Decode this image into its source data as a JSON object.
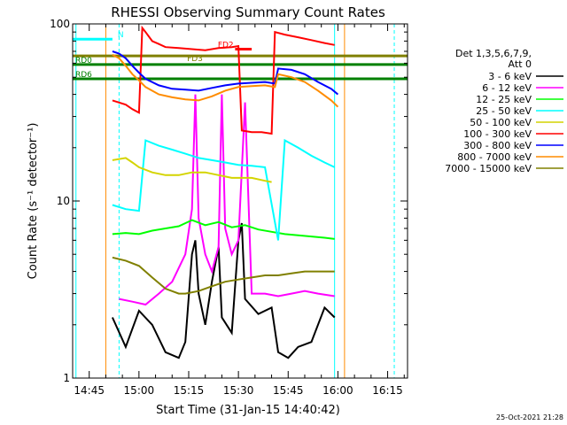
{
  "chart_data": {
    "type": "line",
    "title": "RHESSI Observing Summary Count Rates",
    "xlabel": "Start Time (31-Jan-15 14:40:42)",
    "ylabel": "Count Rate (s⁻¹ detector⁻¹)",
    "yscale": "log",
    "ylim": [
      1,
      100
    ],
    "yticks": [
      {
        "v": 1,
        "label": "1"
      },
      {
        "v": 10,
        "label": "10"
      },
      {
        "v": 100,
        "label": "100"
      }
    ],
    "xlim_min": [
      640,
      741
    ],
    "xticks": [
      {
        "v": 645,
        "label": "14:45"
      },
      {
        "v": 660,
        "label": "15:00"
      },
      {
        "v": 675,
        "label": "15:15"
      },
      {
        "v": 690,
        "label": "15:30"
      },
      {
        "v": 705,
        "label": "15:45"
      },
      {
        "v": 720,
        "label": "16:00"
      },
      {
        "v": 735,
        "label": "16:15"
      }
    ],
    "legend": {
      "placement": "right",
      "header": [
        "Det 1,3,5,6,7,9,",
        "Att 0"
      ],
      "entries": [
        {
          "label": "3 - 6 keV",
          "color": "#000000"
        },
        {
          "label": "6 - 12 keV",
          "color": "#ff00ff"
        },
        {
          "label": "12 - 25 keV",
          "color": "#00ff00"
        },
        {
          "label": "25 - 50 keV",
          "color": "#00ffff"
        },
        {
          "label": "50 - 100 keV",
          "color": "#d4d400"
        },
        {
          "label": "100 - 300 keV",
          "color": "#ff0000"
        },
        {
          "label": "300 - 800 keV",
          "color": "#0000ff"
        },
        {
          "label": "800 - 7000 keV",
          "color": "#ff8c00"
        },
        {
          "label": "7000 - 15000 keV",
          "color": "#808000"
        }
      ]
    },
    "series": [
      {
        "name": "3 - 6 keV",
        "color": "#000000",
        "points": [
          [
            652,
            2.2
          ],
          [
            656,
            1.5
          ],
          [
            660,
            2.4
          ],
          [
            664,
            2.0
          ],
          [
            668,
            1.4
          ],
          [
            672,
            1.3
          ],
          [
            674,
            1.6
          ],
          [
            676,
            5.0
          ],
          [
            677,
            6.0
          ],
          [
            678,
            3.0
          ],
          [
            680,
            2.0
          ],
          [
            682,
            3.5
          ],
          [
            684,
            5.5
          ],
          [
            685,
            2.2
          ],
          [
            688,
            1.8
          ],
          [
            690,
            6.0
          ],
          [
            691,
            7.5
          ],
          [
            692,
            2.8
          ],
          [
            696,
            2.3
          ],
          [
            700,
            2.5
          ],
          [
            702,
            1.4
          ],
          [
            705,
            1.3
          ],
          [
            708,
            1.5
          ],
          [
            712,
            1.6
          ],
          [
            716,
            2.5
          ],
          [
            719,
            2.2
          ]
        ]
      },
      {
        "name": "6 - 12 keV",
        "color": "#ff00ff",
        "points": [
          [
            654,
            2.8
          ],
          [
            658,
            2.7
          ],
          [
            662,
            2.6
          ],
          [
            666,
            3.0
          ],
          [
            670,
            3.5
          ],
          [
            674,
            5.0
          ],
          [
            676,
            9.0
          ],
          [
            677,
            40.0
          ],
          [
            678,
            8.0
          ],
          [
            680,
            5.0
          ],
          [
            682,
            4.0
          ],
          [
            684,
            5.5
          ],
          [
            685,
            40.0
          ],
          [
            686,
            7.0
          ],
          [
            688,
            5.0
          ],
          [
            690,
            6.0
          ],
          [
            692,
            36.0
          ],
          [
            694,
            3.0
          ],
          [
            698,
            3.0
          ],
          [
            702,
            2.9
          ],
          [
            706,
            3.0
          ],
          [
            710,
            3.1
          ],
          [
            714,
            3.0
          ],
          [
            719,
            2.9
          ]
        ]
      },
      {
        "name": "12 - 25 keV",
        "color": "#00ff00",
        "points": [
          [
            652,
            6.5
          ],
          [
            656,
            6.6
          ],
          [
            660,
            6.5
          ],
          [
            664,
            6.8
          ],
          [
            668,
            7.0
          ],
          [
            672,
            7.2
          ],
          [
            676,
            7.8
          ],
          [
            680,
            7.3
          ],
          [
            684,
            7.6
          ],
          [
            688,
            7.1
          ],
          [
            692,
            7.3
          ],
          [
            696,
            6.9
          ],
          [
            700,
            6.7
          ],
          [
            704,
            6.5
          ],
          [
            708,
            6.4
          ],
          [
            712,
            6.3
          ],
          [
            716,
            6.2
          ],
          [
            719,
            6.1
          ]
        ]
      },
      {
        "name": "25 - 50 keV",
        "color": "#00ffff",
        "points": [
          [
            652,
            9.5
          ],
          [
            656,
            9.0
          ],
          [
            660,
            8.8
          ],
          [
            662,
            22.0
          ],
          [
            666,
            20.5
          ],
          [
            670,
            19.5
          ],
          [
            674,
            18.5
          ],
          [
            678,
            17.5
          ],
          [
            682,
            17.0
          ],
          [
            686,
            16.5
          ],
          [
            690,
            16.0
          ],
          [
            694,
            15.8
          ],
          [
            698,
            15.5
          ],
          [
            702,
            6.0
          ],
          [
            704,
            22.0
          ],
          [
            708,
            20.0
          ],
          [
            712,
            18.0
          ],
          [
            716,
            16.5
          ],
          [
            719,
            15.5
          ]
        ]
      },
      {
        "name": "50 - 100 keV",
        "color": "#d4d400",
        "points": [
          [
            652,
            17.0
          ],
          [
            656,
            17.5
          ],
          [
            658,
            16.5
          ],
          [
            660,
            15.5
          ],
          [
            664,
            14.5
          ],
          [
            668,
            14.0
          ],
          [
            672,
            14.0
          ],
          [
            676,
            14.5
          ],
          [
            680,
            14.5
          ],
          [
            684,
            14.0
          ],
          [
            688,
            13.5
          ],
          [
            690,
            13.5
          ],
          [
            694,
            13.5
          ],
          [
            698,
            13.0
          ],
          [
            700,
            12.8
          ]
        ]
      },
      {
        "name": "100 - 300 keV",
        "color": "#ff0000",
        "points": [
          [
            652,
            37.0
          ],
          [
            656,
            35.0
          ],
          [
            658,
            33.0
          ],
          [
            660,
            31.5
          ],
          [
            661,
            95.0
          ],
          [
            662,
            90.0
          ],
          [
            664,
            80.0
          ],
          [
            666,
            77.0
          ],
          [
            668,
            74.0
          ],
          [
            672,
            73.0
          ],
          [
            676,
            72.0
          ],
          [
            680,
            71.0
          ],
          [
            684,
            73.0
          ],
          [
            688,
            74.0
          ],
          [
            690,
            75.0
          ],
          [
            691,
            25.0
          ],
          [
            694,
            24.5
          ],
          [
            697,
            24.5
          ],
          [
            700,
            24.0
          ],
          [
            701,
            90.0
          ],
          [
            704,
            87.0
          ],
          [
            708,
            84.0
          ],
          [
            712,
            81.0
          ],
          [
            716,
            78.0
          ],
          [
            719,
            76.0
          ]
        ]
      },
      {
        "name": "300 - 800 keV",
        "color": "#0000ff",
        "points": [
          [
            652,
            70.0
          ],
          [
            654,
            68.0
          ],
          [
            656,
            64.0
          ],
          [
            658,
            58.0
          ],
          [
            660,
            53.0
          ],
          [
            662,
            49.0
          ],
          [
            666,
            45.0
          ],
          [
            670,
            43.0
          ],
          [
            674,
            42.5
          ],
          [
            678,
            42.0
          ],
          [
            682,
            43.5
          ],
          [
            686,
            45.0
          ],
          [
            690,
            46.0
          ],
          [
            694,
            46.5
          ],
          [
            698,
            47.0
          ],
          [
            701,
            46.0
          ],
          [
            702,
            56.0
          ],
          [
            706,
            55.0
          ],
          [
            710,
            52.0
          ],
          [
            714,
            47.0
          ],
          [
            718,
            43.0
          ],
          [
            720,
            40.0
          ]
        ]
      },
      {
        "name": "800 - 7000 keV",
        "color": "#ff8c00",
        "points": [
          [
            652,
            67.0
          ],
          [
            654,
            64.0
          ],
          [
            656,
            58.0
          ],
          [
            658,
            52.0
          ],
          [
            660,
            48.0
          ],
          [
            662,
            44.0
          ],
          [
            666,
            40.0
          ],
          [
            670,
            38.5
          ],
          [
            674,
            37.5
          ],
          [
            678,
            37.0
          ],
          [
            682,
            39.0
          ],
          [
            686,
            42.0
          ],
          [
            690,
            44.0
          ],
          [
            694,
            44.5
          ],
          [
            698,
            45.0
          ],
          [
            701,
            44.0
          ],
          [
            702,
            52.0
          ],
          [
            706,
            50.0
          ],
          [
            710,
            47.0
          ],
          [
            714,
            42.0
          ],
          [
            718,
            37.0
          ],
          [
            720,
            34.0
          ]
        ]
      },
      {
        "name": "7000 - 15000 keV",
        "color": "#808000",
        "points": [
          [
            652,
            4.8
          ],
          [
            656,
            4.6
          ],
          [
            660,
            4.3
          ],
          [
            664,
            3.7
          ],
          [
            668,
            3.2
          ],
          [
            672,
            3.0
          ],
          [
            674,
            3.0
          ],
          [
            678,
            3.1
          ],
          [
            682,
            3.3
          ],
          [
            686,
            3.5
          ],
          [
            690,
            3.6
          ],
          [
            694,
            3.7
          ],
          [
            698,
            3.8
          ],
          [
            702,
            3.8
          ],
          [
            706,
            3.9
          ],
          [
            710,
            4.0
          ],
          [
            714,
            4.0
          ],
          [
            719,
            4.0
          ]
        ]
      }
    ],
    "annotations": {
      "flags": [
        {
          "label": "N",
          "color": "#00ffff",
          "y": 82,
          "x": [
            640,
            652
          ]
        },
        {
          "label": "FD2",
          "color": "#ff0000",
          "y": 72,
          "x": [
            689,
            694
          ]
        },
        {
          "label": "FD3",
          "color": "#808000",
          "y": 66,
          "x": [
            640,
            741
          ]
        },
        {
          "label": "RD0",
          "color": "#008000",
          "y": 59,
          "x": [
            640,
            741
          ]
        },
        {
          "label": "RD6",
          "color": "#008000",
          "y": 49,
          "x": [
            640,
            741
          ]
        }
      ],
      "vlines": [
        {
          "x": 641,
          "color": "#00ffff",
          "style": "solid"
        },
        {
          "x": 650,
          "color": "#ff8c00",
          "style": "solid"
        },
        {
          "x": 654,
          "color": "#00ffff",
          "style": "dashed"
        },
        {
          "x": 719,
          "color": "#00ffff",
          "style": "solid"
        },
        {
          "x": 722,
          "color": "#ff8c00",
          "style": "solid"
        },
        {
          "x": 737,
          "color": "#00ffff",
          "style": "dashed"
        }
      ]
    },
    "grid": false,
    "timestamp": "25-Oct-2021 21:28"
  }
}
